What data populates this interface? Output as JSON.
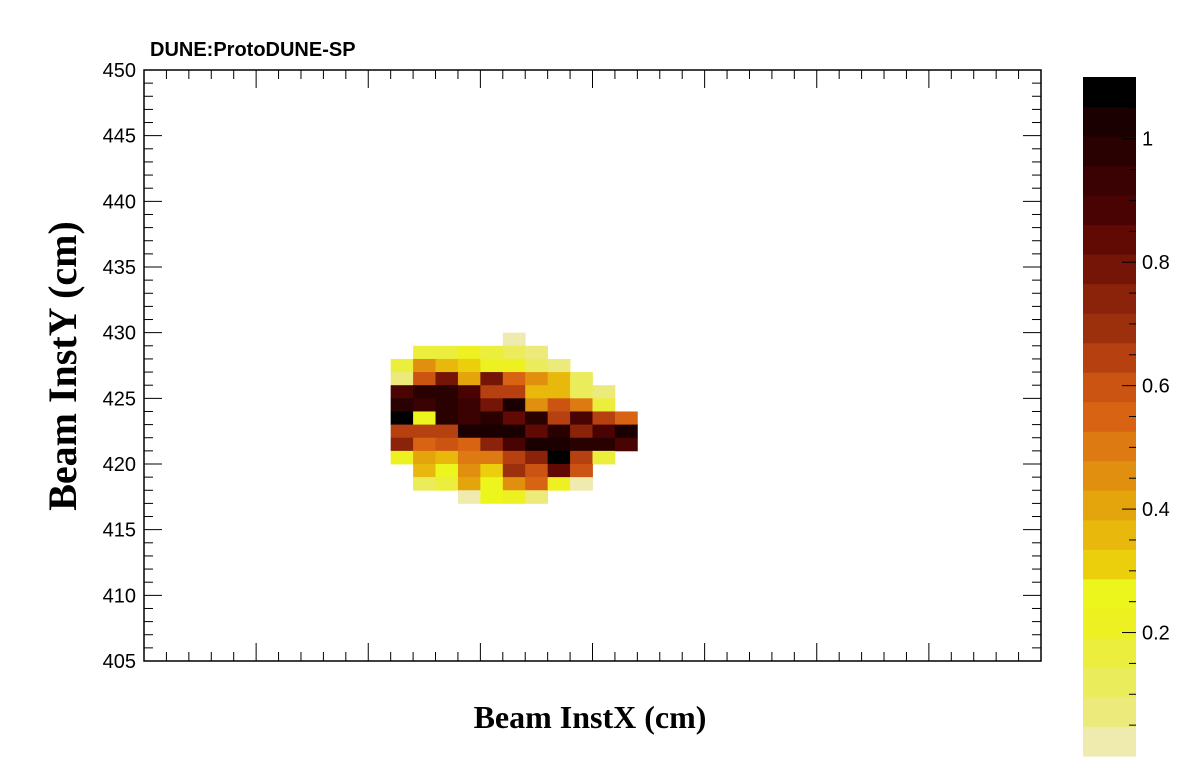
{
  "chart_data": {
    "type": "heatmap",
    "title": "DUNE:ProtoDUNE-SP",
    "xlabel": "Beam InstX (cm)",
    "ylabel": "Beam InstY (cm)",
    "ylim": [
      405,
      450
    ],
    "yticks": [
      "405",
      "410",
      "415",
      "420",
      "425",
      "430",
      "435",
      "440",
      "445",
      "450"
    ],
    "x_bin_width": 1,
    "y_bin_width": 1,
    "x_bins": 40,
    "zlim": [
      0,
      1.1
    ],
    "zticks": [
      "0.2",
      "0.4",
      "0.6",
      "0.8",
      "1"
    ],
    "palette": [
      "#efeaae",
      "#ebea7b",
      "#ebec5c",
      "#ebee3c",
      "#edf021",
      "#edf61c",
      "#ebce0c",
      "#e8b80c",
      "#e4a40c",
      "#e0900e",
      "#dd7a11",
      "#d86312",
      "#cc5412",
      "#b6400f",
      "#9c300c",
      "#8a2309",
      "#741507",
      "#610a04",
      "#4a0303",
      "#3a0202",
      "#2a0101",
      "#1a0000",
      "#000000"
    ],
    "grid": false,
    "cells": [
      {
        "x": 16,
        "y": 429,
        "z": 0.04
      },
      {
        "x": 12,
        "y": 428,
        "z": 0.15
      },
      {
        "x": 13,
        "y": 428,
        "z": 0.18
      },
      {
        "x": 14,
        "y": 428,
        "z": 0.2
      },
      {
        "x": 15,
        "y": 428,
        "z": 0.15
      },
      {
        "x": 16,
        "y": 428,
        "z": 0.1
      },
      {
        "x": 17,
        "y": 428,
        "z": 0.05
      },
      {
        "x": 11,
        "y": 427,
        "z": 0.15
      },
      {
        "x": 12,
        "y": 427,
        "z": 0.45
      },
      {
        "x": 13,
        "y": 427,
        "z": 0.38
      },
      {
        "x": 14,
        "y": 427,
        "z": 0.3
      },
      {
        "x": 15,
        "y": 427,
        "z": 0.22
      },
      {
        "x": 16,
        "y": 427,
        "z": 0.22
      },
      {
        "x": 17,
        "y": 427,
        "z": 0.1
      },
      {
        "x": 18,
        "y": 427,
        "z": 0.05
      },
      {
        "x": 11,
        "y": 426,
        "z": 0.06
      },
      {
        "x": 12,
        "y": 426,
        "z": 0.6
      },
      {
        "x": 13,
        "y": 426,
        "z": 0.78
      },
      {
        "x": 14,
        "y": 426,
        "z": 0.42
      },
      {
        "x": 15,
        "y": 426,
        "z": 0.8
      },
      {
        "x": 16,
        "y": 426,
        "z": 0.55
      },
      {
        "x": 17,
        "y": 426,
        "z": 0.45
      },
      {
        "x": 18,
        "y": 426,
        "z": 0.37
      },
      {
        "x": 19,
        "y": 426,
        "z": 0.12
      },
      {
        "x": 11,
        "y": 425,
        "z": 0.88
      },
      {
        "x": 12,
        "y": 425,
        "z": 0.99
      },
      {
        "x": 13,
        "y": 425,
        "z": 0.99
      },
      {
        "x": 14,
        "y": 425,
        "z": 0.9
      },
      {
        "x": 15,
        "y": 425,
        "z": 0.63
      },
      {
        "x": 16,
        "y": 425,
        "z": 0.63
      },
      {
        "x": 17,
        "y": 425,
        "z": 0.38
      },
      {
        "x": 18,
        "y": 425,
        "z": 0.38
      },
      {
        "x": 19,
        "y": 425,
        "z": 0.1
      },
      {
        "x": 20,
        "y": 425,
        "z": 0.06
      },
      {
        "x": 11,
        "y": 424,
        "z": 1.0
      },
      {
        "x": 12,
        "y": 424,
        "z": 0.95
      },
      {
        "x": 13,
        "y": 424,
        "z": 0.98
      },
      {
        "x": 14,
        "y": 424,
        "z": 0.92
      },
      {
        "x": 15,
        "y": 424,
        "z": 0.8
      },
      {
        "x": 16,
        "y": 424,
        "z": 1.05
      },
      {
        "x": 17,
        "y": 424,
        "z": 0.45
      },
      {
        "x": 18,
        "y": 424,
        "z": 0.6
      },
      {
        "x": 19,
        "y": 424,
        "z": 0.5
      },
      {
        "x": 20,
        "y": 424,
        "z": 0.15
      },
      {
        "x": 11,
        "y": 423,
        "z": 1.08
      },
      {
        "x": 12,
        "y": 423,
        "z": 0.28
      },
      {
        "x": 13,
        "y": 423,
        "z": 0.99
      },
      {
        "x": 14,
        "y": 423,
        "z": 0.92
      },
      {
        "x": 15,
        "y": 423,
        "z": 0.97
      },
      {
        "x": 16,
        "y": 423,
        "z": 0.85
      },
      {
        "x": 17,
        "y": 423,
        "z": 1.0
      },
      {
        "x": 18,
        "y": 423,
        "z": 0.65
      },
      {
        "x": 19,
        "y": 423,
        "z": 0.9
      },
      {
        "x": 20,
        "y": 423,
        "z": 0.65
      },
      {
        "x": 21,
        "y": 423,
        "z": 0.55
      },
      {
        "x": 11,
        "y": 422,
        "z": 0.65
      },
      {
        "x": 12,
        "y": 422,
        "z": 0.65
      },
      {
        "x": 13,
        "y": 422,
        "z": 0.65
      },
      {
        "x": 14,
        "y": 422,
        "z": 1.05
      },
      {
        "x": 15,
        "y": 422,
        "z": 1.05
      },
      {
        "x": 16,
        "y": 422,
        "z": 1.02
      },
      {
        "x": 17,
        "y": 422,
        "z": 0.85
      },
      {
        "x": 18,
        "y": 422,
        "z": 0.98
      },
      {
        "x": 19,
        "y": 422,
        "z": 0.75
      },
      {
        "x": 20,
        "y": 422,
        "z": 0.9
      },
      {
        "x": 21,
        "y": 422,
        "z": 1.05
      },
      {
        "x": 11,
        "y": 421,
        "z": 0.75
      },
      {
        "x": 12,
        "y": 421,
        "z": 0.55
      },
      {
        "x": 13,
        "y": 421,
        "z": 0.6
      },
      {
        "x": 14,
        "y": 421,
        "z": 0.55
      },
      {
        "x": 15,
        "y": 421,
        "z": 0.75
      },
      {
        "x": 16,
        "y": 421,
        "z": 0.9
      },
      {
        "x": 17,
        "y": 421,
        "z": 1.02
      },
      {
        "x": 18,
        "y": 421,
        "z": 1.05
      },
      {
        "x": 19,
        "y": 421,
        "z": 0.98
      },
      {
        "x": 20,
        "y": 421,
        "z": 1.0
      },
      {
        "x": 21,
        "y": 421,
        "z": 0.9
      },
      {
        "x": 11,
        "y": 420,
        "z": 0.22
      },
      {
        "x": 12,
        "y": 420,
        "z": 0.42
      },
      {
        "x": 13,
        "y": 420,
        "z": 0.35
      },
      {
        "x": 14,
        "y": 420,
        "z": 0.5
      },
      {
        "x": 15,
        "y": 420,
        "z": 0.5
      },
      {
        "x": 16,
        "y": 420,
        "z": 0.65
      },
      {
        "x": 17,
        "y": 420,
        "z": 0.75
      },
      {
        "x": 18,
        "y": 420,
        "z": 1.08
      },
      {
        "x": 19,
        "y": 420,
        "z": 0.65
      },
      {
        "x": 20,
        "y": 420,
        "z": 0.18
      },
      {
        "x": 12,
        "y": 419,
        "z": 0.35
      },
      {
        "x": 13,
        "y": 419,
        "z": 0.25
      },
      {
        "x": 14,
        "y": 419,
        "z": 0.45
      },
      {
        "x": 15,
        "y": 419,
        "z": 0.3
      },
      {
        "x": 16,
        "y": 419,
        "z": 0.7
      },
      {
        "x": 17,
        "y": 419,
        "z": 0.62
      },
      {
        "x": 18,
        "y": 419,
        "z": 0.85
      },
      {
        "x": 19,
        "y": 419,
        "z": 0.58
      },
      {
        "x": 12,
        "y": 418,
        "z": 0.12
      },
      {
        "x": 13,
        "y": 418,
        "z": 0.15
      },
      {
        "x": 14,
        "y": 418,
        "z": 0.4
      },
      {
        "x": 15,
        "y": 418,
        "z": 0.25
      },
      {
        "x": 16,
        "y": 418,
        "z": 0.45
      },
      {
        "x": 17,
        "y": 418,
        "z": 0.55
      },
      {
        "x": 18,
        "y": 418,
        "z": 0.2
      },
      {
        "x": 19,
        "y": 418,
        "z": 0.04
      },
      {
        "x": 14,
        "y": 417,
        "z": 0.04
      },
      {
        "x": 15,
        "y": 417,
        "z": 0.25
      },
      {
        "x": 16,
        "y": 417,
        "z": 0.2
      },
      {
        "x": 17,
        "y": 417,
        "z": 0.05
      }
    ]
  }
}
